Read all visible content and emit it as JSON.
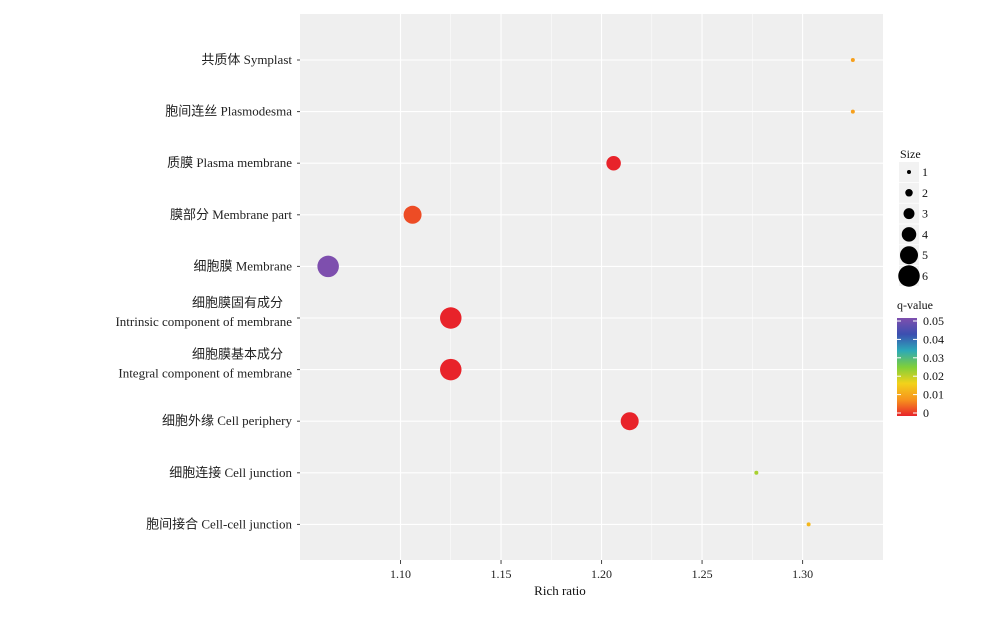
{
  "chart_data": {
    "type": "scatter",
    "xlabel": "Rich ratio",
    "xlim": [
      1.05,
      1.34
    ],
    "xticks": [
      1.1,
      1.15,
      1.2,
      1.25,
      1.3
    ],
    "xtick_labels": [
      "1.10",
      "1.15",
      "1.20",
      "1.25",
      "1.30"
    ],
    "grid": true,
    "background": "#efefef",
    "legend_placement": "right",
    "categories": [
      {
        "lines": [
          "共质体 Symplast"
        ],
        "x": 1.325,
        "size": 1,
        "q": 0.01
      },
      {
        "lines": [
          "胞间连丝 Plasmodesma"
        ],
        "x": 1.325,
        "size": 1,
        "q": 0.01
      },
      {
        "lines": [
          "质膜 Plasma membrane"
        ],
        "x": 1.206,
        "size": 4,
        "q": 0.0
      },
      {
        "lines": [
          "膜部分 Membrane part"
        ],
        "x": 1.106,
        "size": 5,
        "q": 0.003
      },
      {
        "lines": [
          "细胞膜 Membrane"
        ],
        "x": 1.064,
        "size": 6,
        "q": 0.05
      },
      {
        "lines": [
          "细胞膜固有成分",
          "Intrinsic component of membrane"
        ],
        "x": 1.125,
        "size": 6,
        "q": 0.0
      },
      {
        "lines": [
          "细胞膜基本成分",
          "Integral component of membrane"
        ],
        "x": 1.125,
        "size": 6,
        "q": 0.0
      },
      {
        "lines": [
          "细胞外缘 Cell periphery"
        ],
        "x": 1.214,
        "size": 5,
        "q": 0.0
      },
      {
        "lines": [
          "细胞连接 Cell junction"
        ],
        "x": 1.277,
        "size": 1,
        "q": 0.022
      },
      {
        "lines": [
          "胞间接合 Cell-cell junction"
        ],
        "x": 1.303,
        "size": 1,
        "q": 0.013
      }
    ],
    "size_legend": {
      "title": "Size",
      "values": [
        "1",
        "2",
        "3",
        "4",
        "5",
        "6"
      ]
    },
    "color_legend": {
      "title": "q-value",
      "values": [
        "0.05",
        "0.04",
        "0.03",
        "0.02",
        "0.01",
        "0"
      ],
      "gradient": [
        "#7e4fae",
        "#3b4fb0",
        "#2ca9b8",
        "#7fcf3a",
        "#f2d21b",
        "#f7941d",
        "#e8232a"
      ]
    }
  }
}
